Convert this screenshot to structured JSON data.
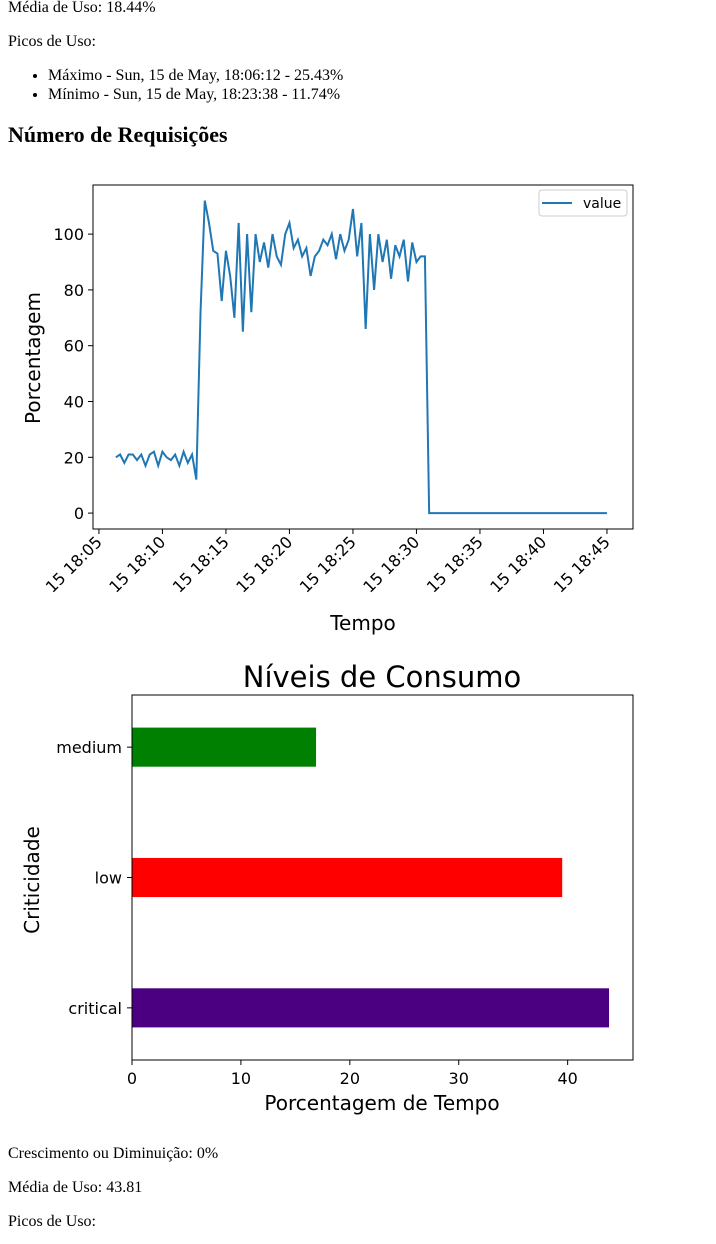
{
  "summary": {
    "average": "Média de Uso: 18.44%",
    "peaks_label": "Picos de Uso:",
    "peaks": [
      "Máximo - Sun, 15 de May, 18:06:12 - 25.43%",
      "Mínimo - Sun, 15 de May, 18:23:38 - 11.74%"
    ]
  },
  "heading": "Número de Requisições",
  "chart_data": [
    {
      "type": "line",
      "xlabel": "Tempo",
      "ylabel": "Porcentagem",
      "x": [
        "15 18:06:20",
        "15 18:06:40",
        "15 18:07:00",
        "15 18:07:20",
        "15 18:07:40",
        "15 18:08:00",
        "15 18:08:20",
        "15 18:08:40",
        "15 18:09:00",
        "15 18:09:20",
        "15 18:09:40",
        "15 18:10:00",
        "15 18:10:20",
        "15 18:10:40",
        "15 18:11:00",
        "15 18:11:20",
        "15 18:11:40",
        "15 18:12:00",
        "15 18:12:20",
        "15 18:12:40",
        "15 18:13:00",
        "15 18:13:20",
        "15 18:13:40",
        "15 18:14:00",
        "15 18:14:20",
        "15 18:14:40",
        "15 18:15:00",
        "15 18:15:20",
        "15 18:15:40",
        "15 18:16:00",
        "15 18:16:20",
        "15 18:16:40",
        "15 18:17:00",
        "15 18:17:20",
        "15 18:17:40",
        "15 18:18:00",
        "15 18:18:20",
        "15 18:18:40",
        "15 18:19:00",
        "15 18:19:20",
        "15 18:19:40",
        "15 18:20:00",
        "15 18:20:20",
        "15 18:20:40",
        "15 18:21:00",
        "15 18:21:20",
        "15 18:21:40",
        "15 18:22:00",
        "15 18:22:20",
        "15 18:22:40",
        "15 18:23:00",
        "15 18:23:20",
        "15 18:23:40",
        "15 18:24:00",
        "15 18:24:20",
        "15 18:24:40",
        "15 18:25:00",
        "15 18:25:20",
        "15 18:25:40",
        "15 18:26:00",
        "15 18:26:20",
        "15 18:26:40",
        "15 18:27:00",
        "15 18:27:20",
        "15 18:27:40",
        "15 18:28:00",
        "15 18:28:20",
        "15 18:28:40",
        "15 18:29:00",
        "15 18:29:20",
        "15 18:29:40",
        "15 18:30:00",
        "15 18:30:20",
        "15 18:30:40",
        "15 18:31:00",
        "15 18:45:00"
      ],
      "series": [
        {
          "name": "value",
          "color": "#1f77b4",
          "values": [
            20,
            21,
            18,
            21,
            21,
            19,
            21,
            17,
            21,
            22,
            17,
            22,
            20,
            19,
            21,
            17,
            22,
            18,
            21,
            12,
            72,
            112,
            104,
            94,
            93,
            76,
            94,
            85,
            70,
            104,
            65,
            100,
            72,
            100,
            90,
            97,
            88,
            100,
            92,
            89,
            100,
            104,
            95,
            98,
            92,
            95,
            85,
            92,
            94,
            98,
            96,
            100,
            91,
            100,
            94,
            98,
            109,
            92,
            104,
            66,
            100,
            80,
            100,
            90,
            98,
            84,
            96,
            92,
            98,
            83,
            97,
            90,
            92,
            92,
            0,
            0
          ]
        }
      ],
      "xlim": [
        "15 18:04:32",
        "15 18:47:03"
      ],
      "xticks": [
        "15 18:05",
        "15 18:10",
        "15 18:15",
        "15 18:20",
        "15 18:25",
        "15 18:30",
        "15 18:35",
        "15 18:40",
        "15 18:45"
      ],
      "ylim": [
        -5.7,
        117.6
      ],
      "yticks": [
        0,
        20,
        40,
        60,
        80,
        100
      ],
      "legend": "upper right"
    },
    {
      "type": "barh",
      "title": "Níveis de Consumo",
      "xlabel": "Porcentagem de Tempo",
      "ylabel": "Criticidade",
      "categories": [
        "critical",
        "low",
        "medium"
      ],
      "values": [
        43.8,
        39.5,
        16.9
      ],
      "colors": [
        "#4b0082",
        "#ff0000",
        "#008000"
      ],
      "xlim": [
        0,
        46
      ],
      "xticks": [
        0,
        10,
        20,
        30,
        40
      ]
    }
  ],
  "footer": {
    "growth": "Crescimento ou Diminuição: 0%",
    "average": "Média de Uso: 43.81",
    "peaks_label": "Picos de Uso:"
  }
}
